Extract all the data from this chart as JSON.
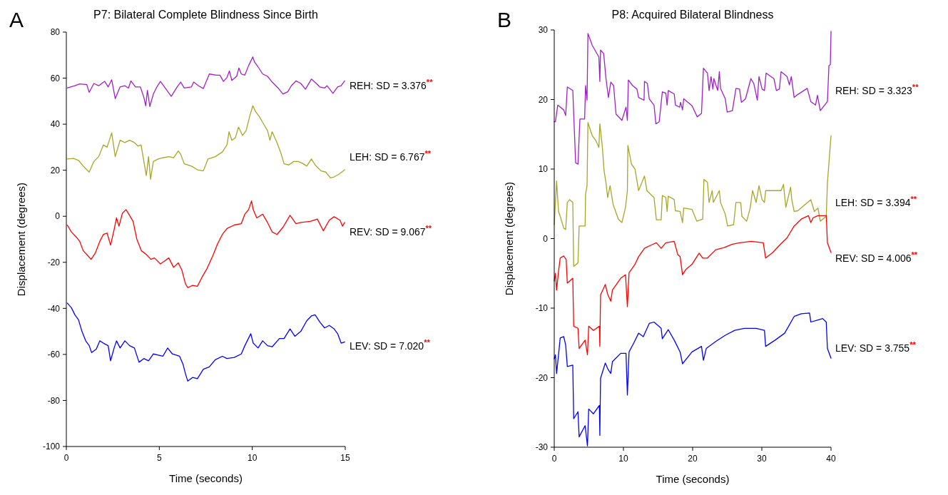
{
  "chart_data": [
    {
      "type": "line",
      "title": "P7: Bilateral Complete Blindness Since Birth",
      "xlabel": "Time (seconds)",
      "ylabel": "Displacement (degrees)",
      "annotations": [
        "A"
      ],
      "xlim": [
        0,
        15
      ],
      "ylim": [
        -100,
        80
      ],
      "xticks": [
        0,
        5,
        10,
        15
      ],
      "yticks": [
        -100,
        -80,
        -60,
        -40,
        -20,
        0,
        20,
        40,
        60,
        80
      ],
      "series": [
        {
          "name": "REH: SD = 3.376$^{**}$",
          "color": "#a020c8",
          "x": [
            0.05,
            0.46,
            0.72,
            1.1,
            1.23,
            1.48,
            1.74,
            2.06,
            2.25,
            2.44,
            2.63,
            2.89,
            3.15,
            3.34,
            3.47,
            3.72,
            3.98,
            4.17,
            4.27,
            4.36,
            4.49,
            4.68,
            4.87,
            5.06,
            5.32,
            5.64,
            5.96,
            6.15,
            6.34,
            6.73,
            6.85,
            7.11,
            7.37,
            7.69,
            8.07,
            8.26,
            8.45,
            8.64,
            8.77,
            8.9,
            9.16,
            9.28,
            9.41,
            9.6,
            9.8,
            10.03,
            10.12,
            10.31,
            10.56,
            10.82,
            11.07,
            11.39,
            11.65,
            11.91,
            12.1,
            12.35,
            12.61,
            12.86,
            13.18,
            13.44,
            13.63,
            13.89,
            14.02,
            14.34,
            14.59,
            14.78,
            14.97
          ],
          "values": [
            55.7,
            56.7,
            57.5,
            57.2,
            53.8,
            57.7,
            56.7,
            58.6,
            56.2,
            59.3,
            51.1,
            56.2,
            56.7,
            55.7,
            58.8,
            56.2,
            56.2,
            51.6,
            48.0,
            54.7,
            47.7,
            53.1,
            56.2,
            58.6,
            55.7,
            52.1,
            56.2,
            58.3,
            55.7,
            56.2,
            58.3,
            56.7,
            55.5,
            61.8,
            61.3,
            61.3,
            58.6,
            60.3,
            63.1,
            59.0,
            60.8,
            64.4,
            61.8,
            61.3,
            65.4,
            69.2,
            67.0,
            64.9,
            61.8,
            60.8,
            58.3,
            55.7,
            53.1,
            54.1,
            56.7,
            58.8,
            57.7,
            55.2,
            59.6,
            57.7,
            56.2,
            55.7,
            56.7,
            53.4,
            56.2,
            56.7,
            58.8
          ]
        },
        {
          "name": "LEH: SD = 6.767$^{**}$",
          "color": "#a6a628",
          "x": [
            0.05,
            0.4,
            0.65,
            0.91,
            1.23,
            1.48,
            1.74,
            1.99,
            2.19,
            2.44,
            2.63,
            2.89,
            3.15,
            3.4,
            3.66,
            3.85,
            4.02,
            4.17,
            4.3,
            4.42,
            4.53,
            4.68,
            4.94,
            5.19,
            5.51,
            5.77,
            6.02,
            6.15,
            6.34,
            6.73,
            7.05,
            7.37,
            7.62,
            8.01,
            8.39,
            8.64,
            8.75,
            8.9,
            9.09,
            9.26,
            9.48,
            9.67,
            9.86,
            10.03,
            10.18,
            10.37,
            10.63,
            10.82,
            10.95,
            11.07,
            11.33,
            11.52,
            11.71,
            11.97,
            12.23,
            12.48,
            12.74,
            12.93,
            13.18,
            13.38,
            13.7,
            13.95,
            14.21,
            14.4,
            14.65,
            14.97
          ],
          "values": [
            24.9,
            25.1,
            24.3,
            21.8,
            19.2,
            23.8,
            25.9,
            31.0,
            30.0,
            36.2,
            25.9,
            33.0,
            32.0,
            33.0,
            32.0,
            30.5,
            31.0,
            23.8,
            17.7,
            25.9,
            16.1,
            23.8,
            24.9,
            25.4,
            25.9,
            25.4,
            28.4,
            26.9,
            22.8,
            21.8,
            20.2,
            19.7,
            24.9,
            25.9,
            27.9,
            31.0,
            36.7,
            33.0,
            34.1,
            38.7,
            35.1,
            37.2,
            43.4,
            48.0,
            45.4,
            43.4,
            39.8,
            37.2,
            33.0,
            36.7,
            32.0,
            27.9,
            22.8,
            22.3,
            23.8,
            23.8,
            22.8,
            21.8,
            24.9,
            22.3,
            19.7,
            19.2,
            16.7,
            17.1,
            18.2,
            20.2
          ]
        },
        {
          "name": "REV: SD = 9.067$^{**}$",
          "color": "#ff0000",
          "x": [
            0.05,
            0.27,
            0.52,
            0.72,
            0.91,
            1.1,
            1.33,
            1.55,
            1.8,
            1.99,
            2.19,
            2.38,
            2.57,
            2.7,
            2.83,
            3.02,
            3.21,
            3.4,
            3.59,
            3.79,
            4.04,
            4.3,
            4.55,
            4.74,
            5.06,
            5.32,
            5.51,
            5.77,
            6.02,
            6.21,
            6.41,
            6.53,
            6.79,
            7.05,
            7.3,
            7.56,
            7.88,
            8.13,
            8.39,
            8.64,
            9.03,
            9.41,
            9.6,
            9.8,
            9.96,
            10.05,
            10.24,
            10.56,
            10.82,
            11.07,
            11.33,
            11.65,
            12.03,
            12.35,
            12.61,
            13.12,
            13.5,
            13.82,
            14.14,
            14.4,
            14.72,
            14.85,
            14.97
          ],
          "values": [
            -3.8,
            -6.8,
            -8.9,
            -10.9,
            -15.0,
            -16.6,
            -18.7,
            -16.1,
            -10.9,
            -7.9,
            -7.3,
            -12.5,
            -5.8,
            -0.7,
            -4.3,
            1.4,
            2.9,
            0.4,
            -2.2,
            -9.9,
            -15.0,
            -16.6,
            -18.7,
            -18.1,
            -20.7,
            -19.2,
            -18.1,
            -22.2,
            -20.2,
            -23.3,
            -29.4,
            -31.0,
            -30.0,
            -30.4,
            -26.4,
            -22.8,
            -17.1,
            -12.0,
            -7.9,
            -5.3,
            -3.8,
            -3.2,
            0.9,
            2.9,
            6.7,
            2.9,
            -0.7,
            0.9,
            -2.7,
            -6.8,
            -7.9,
            -4.8,
            0.4,
            -3.2,
            -2.7,
            -2.2,
            -1.2,
            -6.3,
            -1.7,
            -0.2,
            -1.7,
            -4.3,
            -2.7
          ]
        },
        {
          "name": "LEV: SD = 7.020$^{**}$",
          "color": "#0000ff",
          "x": [
            0.05,
            0.27,
            0.46,
            0.65,
            0.84,
            1.04,
            1.23,
            1.36,
            1.61,
            1.8,
            1.99,
            2.25,
            2.38,
            2.57,
            2.7,
            2.89,
            3.15,
            3.4,
            3.66,
            3.91,
            4.17,
            4.42,
            4.68,
            4.94,
            5.19,
            5.45,
            5.7,
            6.09,
            6.28,
            6.41,
            6.53,
            6.79,
            7.05,
            7.37,
            7.69,
            8.01,
            8.39,
            8.64,
            9.03,
            9.41,
            9.6,
            9.92,
            10.05,
            10.31,
            10.56,
            10.82,
            11.07,
            11.46,
            11.71,
            12.03,
            12.29,
            12.61,
            12.93,
            13.18,
            13.38,
            13.63,
            13.89,
            14.14,
            14.4,
            14.59,
            14.78,
            14.97
          ],
          "values": [
            -37.7,
            -39.7,
            -42.8,
            -44.9,
            -50.0,
            -54.1,
            -56.2,
            -59.2,
            -57.7,
            -54.1,
            -55.1,
            -56.2,
            -62.8,
            -57.2,
            -54.1,
            -57.2,
            -54.1,
            -56.2,
            -57.2,
            -63.4,
            -61.8,
            -62.8,
            -59.8,
            -60.3,
            -60.8,
            -57.2,
            -59.8,
            -60.8,
            -64.4,
            -68.5,
            -71.6,
            -70.0,
            -70.5,
            -66.4,
            -65.4,
            -62.3,
            -60.8,
            -61.8,
            -61.3,
            -59.8,
            -56.2,
            -51.0,
            -55.1,
            -57.2,
            -54.1,
            -56.2,
            -56.7,
            -53.1,
            -53.1,
            -48.9,
            -52.1,
            -50.0,
            -45.4,
            -43.3,
            -42.8,
            -45.9,
            -48.5,
            -47.4,
            -48.9,
            -51.0,
            -55.1,
            -54.6
          ]
        }
      ]
    },
    {
      "type": "line",
      "title": "P8: Acquired Bilateral Blindness",
      "xlabel": "Time (seconds)",
      "ylabel": "Displacement (degrees)",
      "annotations": [
        "B"
      ],
      "xlim": [
        0,
        40
      ],
      "ylim": [
        -30,
        30
      ],
      "xticks": [
        0,
        10,
        20,
        30,
        40
      ],
      "yticks": [
        -30,
        -20,
        -10,
        0,
        10,
        20,
        30
      ],
      "series": [
        {
          "name": "REH: SD = 3.323$^{**}$",
          "color": "#a020c8",
          "x": [
            0,
            0.17,
            0.51,
            1.37,
            1.65,
            1.89,
            2.68,
            3.09,
            3.43,
            3.71,
            4.39,
            4.53,
            4.74,
            4.87,
            5.49,
            6.45,
            6.59,
            6.69,
            7.14,
            7.48,
            7.83,
            8.17,
            8.58,
            8.93,
            9.78,
            10.37,
            10.57,
            10.71,
            11.33,
            11.95,
            12.19,
            12.98,
            13.04,
            13.46,
            13.73,
            14.42,
            14.69,
            15.17,
            15.62,
            16.13,
            16.31,
            16.48,
            17.34,
            17.51,
            18.13,
            18.26,
            18.54,
            18.71,
            19.91,
            20.67,
            21.28,
            21.56,
            22.14,
            22.38,
            22.66,
            22.93,
            23.07,
            23.62,
            23.86,
            24.03,
            24.72,
            24.99,
            25.75,
            26.26,
            26.78,
            27.05,
            27.64,
            28.42,
            28.84,
            29.35,
            29.59,
            30.04,
            30.38,
            30.62,
            31.75,
            32.1,
            32.54,
            32.78,
            33.64,
            33.99,
            34.26,
            34.67,
            35.02,
            36.56,
            37.08,
            37.76,
            38.04,
            38.45,
            39.48,
            39.7,
            39.9,
            40
          ],
          "values": [
            16.8,
            16.8,
            19.2,
            18.5,
            17.7,
            21.8,
            21.3,
            10.9,
            10.7,
            17.2,
            17.2,
            22.0,
            19.9,
            29.5,
            27.8,
            26.1,
            22.6,
            27.1,
            26.6,
            23.0,
            20.3,
            22.5,
            22.0,
            17.9,
            17.0,
            18.9,
            17.0,
            22.8,
            22.0,
            21.5,
            20.3,
            19.9,
            22.6,
            22.3,
            20.1,
            19.2,
            16.5,
            16.8,
            21.1,
            20.9,
            19.2,
            21.3,
            20.8,
            19.2,
            18.9,
            19.6,
            18.5,
            20.1,
            19.1,
            17.5,
            18.0,
            24.5,
            23.8,
            21.3,
            23.3,
            21.5,
            23.0,
            21.3,
            24.0,
            21.6,
            20.1,
            18.2,
            18.4,
            21.6,
            21.5,
            19.6,
            20.1,
            23.0,
            22.3,
            19.9,
            23.3,
            21.5,
            21.3,
            23.8,
            23.0,
            21.3,
            21.5,
            24.0,
            23.3,
            22.1,
            23.3,
            20.3,
            20.6,
            21.6,
            19.7,
            19.2,
            20.6,
            18.4,
            19.7,
            24.9,
            25.0,
            29.8
          ]
        },
        {
          "name": "LEH: SD = 3.394$^{**}$",
          "color": "#a6a628",
          "x": [
            0,
            0.34,
            0.62,
            0.86,
            1.37,
            1.65,
            1.89,
            2.23,
            2.68,
            2.81,
            3.43,
            3.6,
            4.46,
            4.53,
            4.74,
            4.87,
            5.49,
            6.01,
            6.45,
            6.59,
            6.93,
            7.21,
            7.48,
            7.72,
            8.07,
            8.51,
            9.27,
            9.78,
            10.3,
            10.57,
            10.64,
            11.16,
            11.67,
            12.19,
            13.04,
            13.39,
            14.42,
            14.76,
            15.45,
            15.62,
            16.13,
            16.31,
            16.48,
            17.34,
            17.51,
            18.19,
            18.54,
            18.71,
            19.91,
            20.6,
            21.46,
            21.63,
            22.14,
            22.38,
            22.83,
            23,
            23.86,
            24.03,
            24.72,
            25.06,
            25.92,
            26.26,
            26.95,
            27.12,
            27.81,
            28.32,
            28.66,
            29.18,
            29.59,
            30.04,
            30.38,
            30.55,
            32.78,
            33.13,
            33.47,
            34.16,
            34.33,
            34.67,
            35.19,
            37.08,
            37.59,
            38.11,
            38.45,
            39.31,
            39.48,
            40
          ],
          "values": [
            2.0,
            8.3,
            3.9,
            3.2,
            1.5,
            1.3,
            5.2,
            5.6,
            5.2,
            -4.0,
            -3.5,
            1.8,
            1.8,
            6.4,
            7.6,
            16.7,
            14.8,
            14.1,
            13.1,
            16.5,
            13.4,
            9.7,
            8.0,
            5.9,
            7.6,
            4.9,
            2.8,
            2.3,
            4.5,
            6.9,
            13.4,
            10.7,
            10.0,
            6.9,
            9.0,
            6.9,
            5.9,
            2.7,
            2.7,
            6.2,
            5.9,
            3.9,
            6.1,
            5.6,
            4.0,
            3.9,
            2.3,
            4.4,
            4.2,
            2.5,
            2.8,
            8.5,
            8.1,
            5.2,
            6.9,
            5.2,
            6.9,
            5.2,
            3.5,
            1.8,
            2.0,
            5.2,
            5.2,
            3.2,
            2.5,
            4.4,
            6.9,
            5.2,
            7.6,
            5.6,
            5.2,
            6.9,
            6.9,
            7.8,
            4.5,
            7.4,
            5.6,
            3.9,
            4.0,
            5.6,
            3.9,
            4.4,
            2.5,
            3.2,
            8.0,
            14.8
          ]
        },
        {
          "name": "REV: SD = 4.006$^{**}$",
          "color": "#ff0000",
          "x": [
            0,
            0.17,
            0.34,
            0.62,
            0.86,
            1.37,
            1.72,
            1.89,
            2.68,
            2.81,
            3.43,
            3.6,
            4.46,
            4.8,
            4.98,
            5.66,
            6.52,
            6.59,
            6.69,
            7.38,
            7.72,
            8.17,
            8.41,
            9.61,
            10.3,
            10.57,
            10.81,
            11.67,
            12.19,
            13.04,
            14.07,
            14.76,
            15.45,
            16.13,
            17.34,
            17.85,
            18.19,
            18.54,
            19.05,
            19.91,
            20.94,
            21.46,
            22.14,
            23.34,
            24.55,
            25.75,
            26.78,
            28.49,
            30.21,
            30.55,
            31.58,
            32.61,
            33.64,
            34.67,
            35.7,
            36.73,
            37.08,
            37.42,
            38.11,
            39.31,
            39.48,
            40
          ],
          "values": [
            -6.1,
            -5.0,
            -7.4,
            -4.7,
            -2.8,
            -2.5,
            -3.0,
            -6.4,
            -5.7,
            -12.6,
            -12.9,
            -15.8,
            -14.6,
            -16.7,
            -12.6,
            -13.2,
            -12.6,
            -15.5,
            -8.1,
            -6.6,
            -8.0,
            -9.0,
            -7.4,
            -5.7,
            -5.2,
            -9.8,
            -4.9,
            -3.7,
            -2.6,
            -1.4,
            -0.9,
            -0.6,
            -1.4,
            -0.6,
            -0.4,
            -2.3,
            -2.6,
            -5.2,
            -4.4,
            -3.7,
            -2.1,
            -2.8,
            -2.8,
            -1.6,
            -1.3,
            -0.8,
            -0.6,
            -0.4,
            -0.6,
            -2.8,
            -2.0,
            -0.9,
            0.1,
            1.8,
            2.8,
            3.3,
            2.3,
            3.0,
            3.3,
            3.3,
            -0.6,
            -2.0
          ]
        },
        {
          "name": "LEV: SD = 3.755$^{**}$",
          "color": "#0000ff",
          "x": [
            0,
            0.17,
            0.34,
            0.62,
            0.86,
            1.37,
            1.65,
            1.89,
            2.68,
            2.81,
            3.43,
            3.6,
            4.46,
            4.8,
            4.98,
            5.66,
            6.52,
            6.59,
            6.69,
            7.38,
            7.72,
            8.17,
            8.41,
            9.61,
            10.37,
            10.57,
            10.81,
            11.5,
            12.19,
            12.87,
            13.73,
            14.42,
            15.45,
            15.62,
            16.48,
            17.34,
            18.19,
            18.54,
            19.91,
            21.28,
            21.56,
            21.97,
            23.34,
            24.72,
            26.09,
            27.46,
            29.18,
            30.38,
            30.55,
            31.92,
            33.3,
            34.67,
            35.7,
            36.9,
            37.08,
            38.11,
            38.79,
            39.31,
            39.48,
            40
          ],
          "values": [
            -17.3,
            -16.7,
            -19.4,
            -16.7,
            -14.3,
            -14.1,
            -15.3,
            -18.4,
            -18.2,
            -25.9,
            -24.9,
            -28.5,
            -26.9,
            -29.8,
            -24.5,
            -25.2,
            -24.0,
            -28.3,
            -20.1,
            -17.9,
            -18.7,
            -19.4,
            -17.7,
            -16.5,
            -16.5,
            -22.5,
            -16.3,
            -15.0,
            -13.6,
            -14.1,
            -12.2,
            -12.0,
            -12.9,
            -14.4,
            -13.1,
            -14.6,
            -16.3,
            -18.0,
            -16.3,
            -15.5,
            -17.5,
            -15.8,
            -14.8,
            -13.9,
            -13.2,
            -12.9,
            -12.9,
            -13.2,
            -15.5,
            -14.6,
            -13.6,
            -11.2,
            -10.8,
            -10.7,
            -12.0,
            -11.7,
            -11.5,
            -12.0,
            -15.8,
            -17.2
          ]
        }
      ]
    }
  ]
}
